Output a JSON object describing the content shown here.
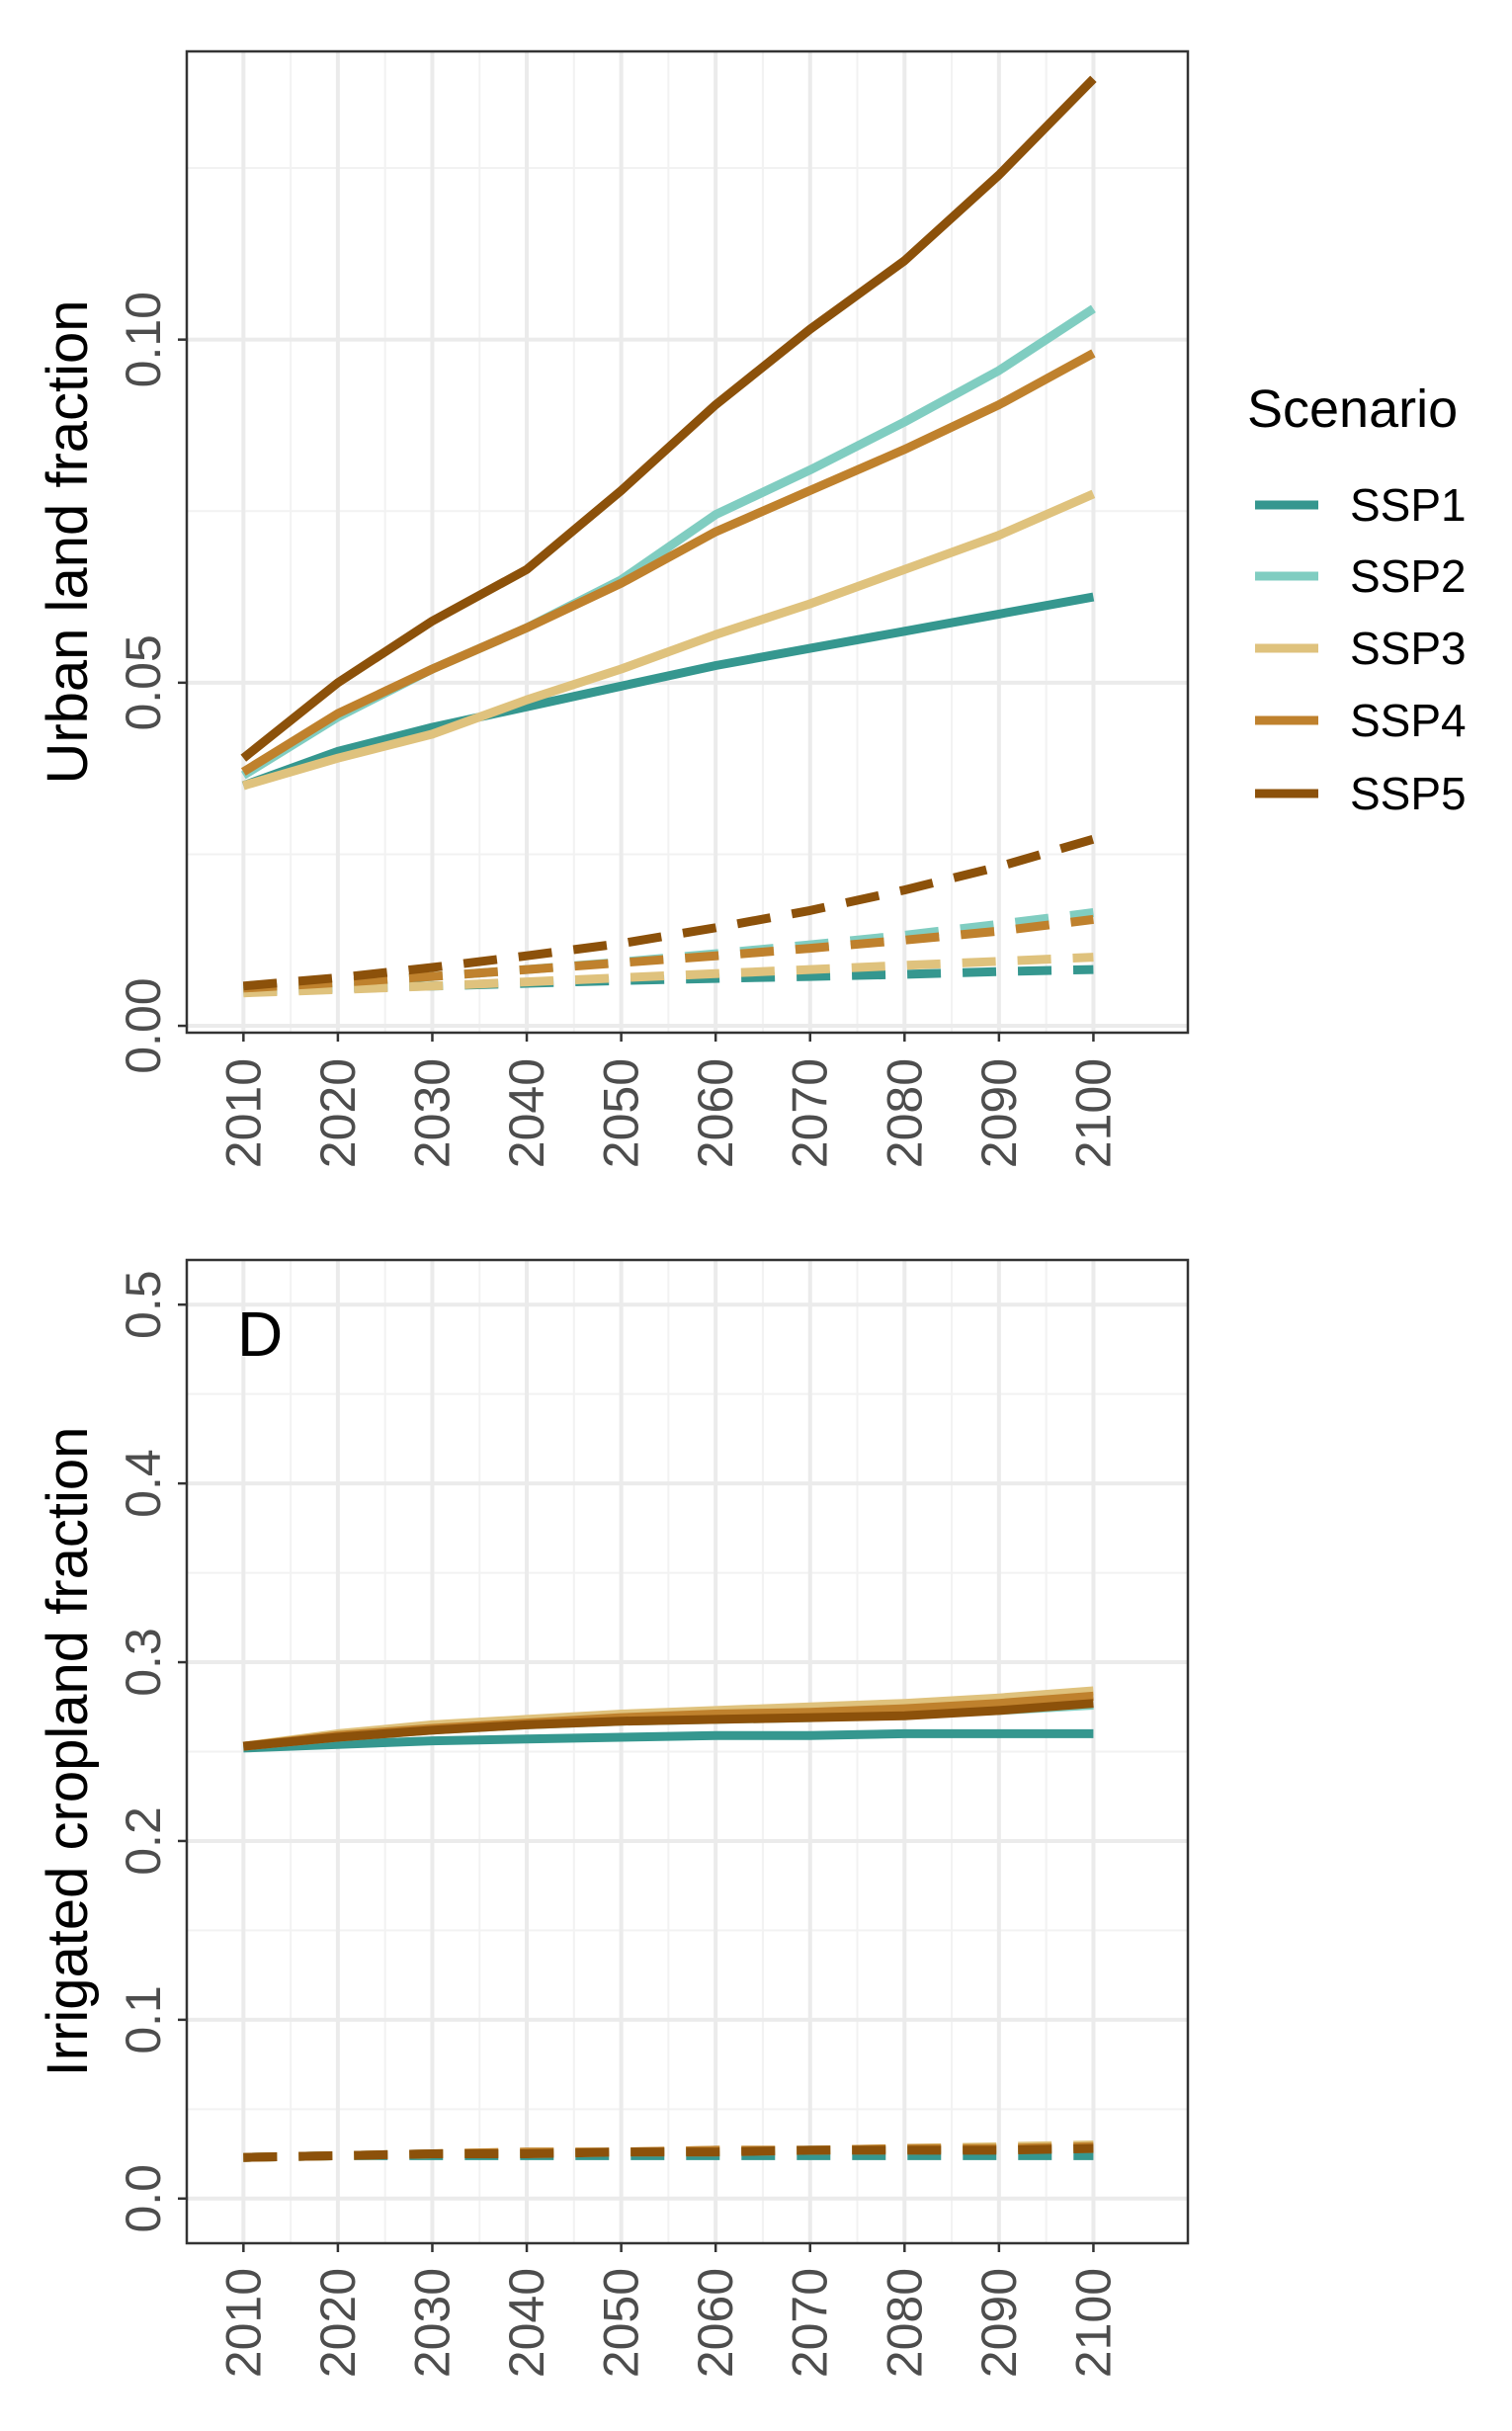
{
  "legend": {
    "title": "Scenario",
    "items": [
      {
        "label": "SSP1",
        "color": "#35978F"
      },
      {
        "label": "SSP2",
        "color": "#80CDC1"
      },
      {
        "label": "SSP3",
        "color": "#DFC27D"
      },
      {
        "label": "SSP4",
        "color": "#BF812D"
      },
      {
        "label": "SSP5",
        "color": "#8C510A"
      }
    ]
  },
  "chart_data": [
    {
      "type": "line",
      "panel": "urban",
      "panel_letter": "",
      "ylabel": "Urban land fraction",
      "xlabel": "",
      "x": [
        2010,
        2020,
        2030,
        2040,
        2050,
        2060,
        2070,
        2080,
        2090,
        2100
      ],
      "xlim": [
        2004,
        2110
      ],
      "ylim": [
        -0.001,
        0.142
      ],
      "yticks": [
        0.0,
        0.05,
        0.1
      ],
      "ytick_labels": [
        "0.00",
        "0.05",
        "0.10"
      ],
      "series": [
        {
          "name": "SSP1",
          "style": "solid",
          "values": [
            0.035,
            0.04,
            0.0435,
            0.0465,
            0.0495,
            0.0525,
            0.055,
            0.0575,
            0.06,
            0.0625
          ]
        },
        {
          "name": "SSP2",
          "style": "solid",
          "values": [
            0.0365,
            0.045,
            0.052,
            0.058,
            0.065,
            0.0745,
            0.081,
            0.088,
            0.0955,
            0.1045
          ]
        },
        {
          "name": "SSP3",
          "style": "solid",
          "values": [
            0.035,
            0.039,
            0.0425,
            0.0475,
            0.052,
            0.057,
            0.0615,
            0.0665,
            0.0715,
            0.0775
          ]
        },
        {
          "name": "SSP4",
          "style": "solid",
          "values": [
            0.037,
            0.0455,
            0.052,
            0.058,
            0.0645,
            0.072,
            0.078,
            0.084,
            0.0905,
            0.098
          ]
        },
        {
          "name": "SSP5",
          "style": "solid",
          "values": [
            0.039,
            0.05,
            0.059,
            0.0665,
            0.078,
            0.0905,
            0.1015,
            0.1115,
            0.124,
            0.138
          ]
        },
        {
          "name": "SSP1",
          "style": "dashed",
          "values": [
            0.005,
            0.0055,
            0.0058,
            0.0062,
            0.0066,
            0.0069,
            0.0072,
            0.0075,
            0.0079,
            0.0082
          ]
        },
        {
          "name": "SSP2",
          "style": "dashed",
          "values": [
            0.0055,
            0.0062,
            0.0072,
            0.0082,
            0.0093,
            0.0105,
            0.0118,
            0.0132,
            0.0148,
            0.0165
          ]
        },
        {
          "name": "SSP3",
          "style": "dashed",
          "values": [
            0.0048,
            0.0053,
            0.0058,
            0.0064,
            0.007,
            0.0076,
            0.0082,
            0.0088,
            0.0094,
            0.01
          ]
        },
        {
          "name": "SSP4",
          "style": "dashed",
          "values": [
            0.0055,
            0.0063,
            0.0072,
            0.0082,
            0.0092,
            0.0102,
            0.0113,
            0.0125,
            0.0138,
            0.0155
          ]
        },
        {
          "name": "SSP5",
          "style": "dashed",
          "values": [
            0.0058,
            0.007,
            0.0085,
            0.0102,
            0.012,
            0.0143,
            0.0168,
            0.0198,
            0.0232,
            0.0272
          ]
        }
      ]
    },
    {
      "type": "line",
      "panel": "irrigated",
      "panel_letter": "D",
      "ylabel": "Irrigated cropland fraction",
      "xlabel": "",
      "x": [
        2010,
        2020,
        2030,
        2040,
        2050,
        2060,
        2070,
        2080,
        2090,
        2100
      ],
      "xlim": [
        2004,
        2110
      ],
      "ylim": [
        -0.025,
        0.525
      ],
      "yticks": [
        0.0,
        0.1,
        0.2,
        0.3,
        0.4,
        0.5
      ],
      "ytick_labels": [
        "0.0",
        "0.1",
        "0.2",
        "0.3",
        "0.4",
        "0.5"
      ],
      "series": [
        {
          "name": "SSP1",
          "style": "solid",
          "values": [
            0.252,
            0.254,
            0.256,
            0.257,
            0.258,
            0.259,
            0.259,
            0.26,
            0.26,
            0.26
          ]
        },
        {
          "name": "SSP2",
          "style": "solid",
          "values": [
            0.253,
            0.258,
            0.262,
            0.265,
            0.267,
            0.268,
            0.269,
            0.271,
            0.273,
            0.276
          ]
        },
        {
          "name": "SSP3",
          "style": "solid",
          "values": [
            0.253,
            0.26,
            0.265,
            0.268,
            0.271,
            0.273,
            0.275,
            0.277,
            0.28,
            0.284
          ]
        },
        {
          "name": "SSP4",
          "style": "solid",
          "values": [
            0.253,
            0.259,
            0.263,
            0.266,
            0.269,
            0.271,
            0.272,
            0.274,
            0.277,
            0.281
          ]
        },
        {
          "name": "SSP5",
          "style": "solid",
          "values": [
            0.253,
            0.258,
            0.262,
            0.265,
            0.267,
            0.268,
            0.269,
            0.27,
            0.273,
            0.277
          ]
        },
        {
          "name": "SSP1",
          "style": "dashed",
          "values": [
            0.023,
            0.024,
            0.024,
            0.024,
            0.024,
            0.024,
            0.024,
            0.024,
            0.024,
            0.024
          ]
        },
        {
          "name": "SSP2",
          "style": "dashed",
          "values": [
            0.023,
            0.024,
            0.025,
            0.025,
            0.026,
            0.026,
            0.027,
            0.027,
            0.028,
            0.028
          ]
        },
        {
          "name": "SSP3",
          "style": "dashed",
          "values": [
            0.023,
            0.024,
            0.025,
            0.026,
            0.026,
            0.027,
            0.027,
            0.028,
            0.029,
            0.03
          ]
        },
        {
          "name": "SSP4",
          "style": "dashed",
          "values": [
            0.023,
            0.024,
            0.025,
            0.026,
            0.026,
            0.027,
            0.027,
            0.028,
            0.028,
            0.029
          ]
        },
        {
          "name": "SSP5",
          "style": "dashed",
          "values": [
            0.023,
            0.024,
            0.025,
            0.025,
            0.026,
            0.026,
            0.027,
            0.027,
            0.027,
            0.028
          ]
        }
      ]
    }
  ]
}
